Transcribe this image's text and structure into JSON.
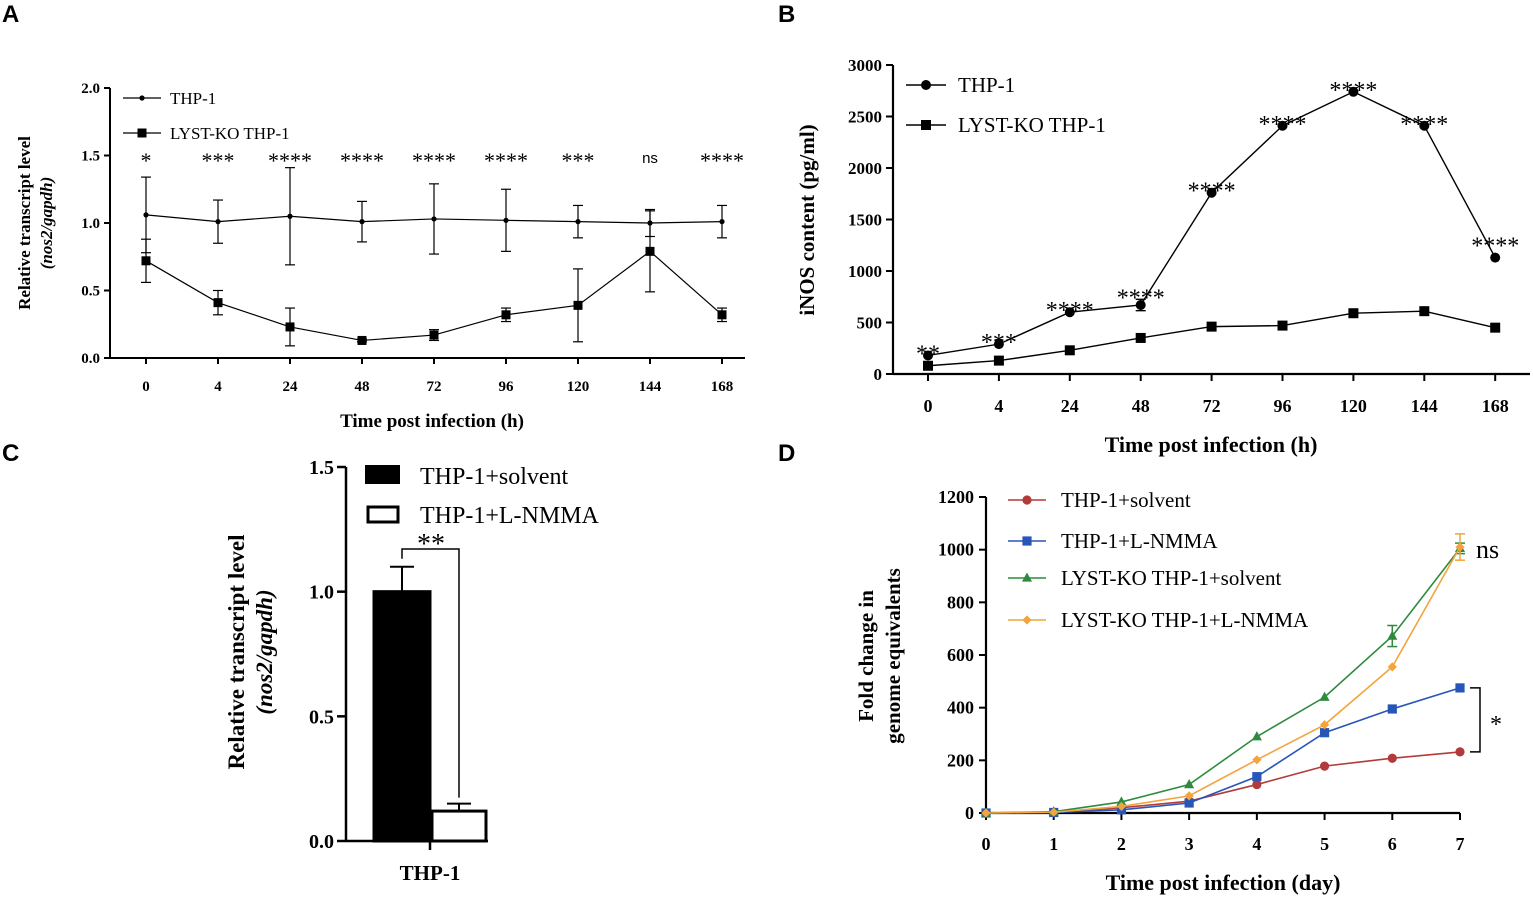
{
  "chart_data": [
    {
      "panel": "A",
      "type": "line",
      "xlabel": "Time post infection (h)",
      "ylabel_line1": "Relative transcript level",
      "ylabel_line2": "(nos2/gapdh)",
      "categories": [
        "0",
        "4",
        "24",
        "48",
        "72",
        "96",
        "120",
        "144",
        "168"
      ],
      "yticks": [
        "0.0",
        "0.5",
        "1.0",
        "1.5",
        "2.0"
      ],
      "ylim": [
        0,
        2.0
      ],
      "series": [
        {
          "name": "THP-1",
          "marker": "circle-small",
          "values": [
            1.06,
            1.01,
            1.05,
            1.01,
            1.03,
            1.02,
            1.01,
            1.0,
            1.01
          ],
          "errors": [
            0.28,
            0.16,
            0.36,
            0.15,
            0.26,
            0.23,
            0.12,
            0.1,
            0.12
          ]
        },
        {
          "name": "LYST-KO THP-1",
          "marker": "square",
          "values": [
            0.72,
            0.41,
            0.23,
            0.13,
            0.17,
            0.32,
            0.39,
            0.79,
            0.32
          ],
          "errors": [
            0.16,
            0.09,
            0.14,
            0.01,
            0.04,
            0.05,
            0.27,
            0.3,
            0.05
          ]
        }
      ],
      "significance": [
        "*",
        "***",
        "****",
        "****",
        "****",
        "****",
        "***",
        "ns",
        "****"
      ]
    },
    {
      "panel": "B",
      "type": "line",
      "xlabel": "Time post infection (h)",
      "ylabel": "iNOS content (pg/ml)",
      "categories": [
        "0",
        "4",
        "24",
        "48",
        "72",
        "96",
        "120",
        "144",
        "168"
      ],
      "yticks": [
        "0",
        "500",
        "1000",
        "1500",
        "2000",
        "2500",
        "3000"
      ],
      "ylim": [
        0,
        3000
      ],
      "series": [
        {
          "name": "THP-1",
          "marker": "circle",
          "values": [
            180,
            290,
            600,
            670,
            1760,
            2410,
            2740,
            2410,
            1130
          ],
          "errors": [
            0,
            0,
            0,
            55,
            0,
            0,
            0,
            0,
            0
          ]
        },
        {
          "name": "LYST-KO THP-1",
          "marker": "square",
          "values": [
            80,
            130,
            230,
            350,
            460,
            470,
            590,
            610,
            450
          ],
          "errors": [
            0,
            0,
            0,
            0,
            0,
            0,
            0,
            0,
            0
          ]
        }
      ],
      "significance": [
        "**",
        "***",
        "****",
        "****",
        "****",
        "****",
        "****",
        "****",
        "****"
      ]
    },
    {
      "panel": "C",
      "type": "bar",
      "xlabel": "THP-1",
      "ylabel_line1": "Relative transcript level",
      "ylabel_line2": "(nos2/gapdh)",
      "yticks": [
        "0.0",
        "0.5",
        "1.0",
        "1.5"
      ],
      "ylim": [
        0,
        1.5
      ],
      "series": [
        {
          "name": "THP-1+solvent",
          "fill": "#000000",
          "value": 1.0,
          "error": 0.1
        },
        {
          "name": "THP-1+L-NMMA",
          "fill": "#ffffff",
          "value": 0.12,
          "error": 0.03
        }
      ],
      "significance": "**"
    },
    {
      "panel": "D",
      "type": "line",
      "xlabel": "Time post infection (day)",
      "ylabel_line1": "Fold change in",
      "ylabel_line2": "genome equivalents",
      "x": [
        "0",
        "1",
        "2",
        "3",
        "4",
        "5",
        "6",
        "7"
      ],
      "yticks": [
        "0",
        "200",
        "400",
        "600",
        "800",
        "1000",
        "1200"
      ],
      "ylim": [
        0,
        1200
      ],
      "series": [
        {
          "name": "THP-1+solvent",
          "color": "#b23a3a",
          "marker": "circle",
          "values": [
            0,
            2,
            20,
            45,
            108,
            178,
            208,
            232
          ],
          "errors": [
            0,
            0,
            0,
            0,
            0,
            0,
            0,
            0
          ]
        },
        {
          "name": "THP-1+L-NMMA",
          "color": "#2855b8",
          "marker": "square",
          "values": [
            0,
            2,
            12,
            38,
            138,
            305,
            395,
            475
          ],
          "errors": [
            0,
            0,
            0,
            0,
            0,
            0,
            0,
            0
          ]
        },
        {
          "name": "LYST-KO THP-1+solvent",
          "color": "#2e8b3e",
          "marker": "triangle",
          "values": [
            0,
            5,
            42,
            108,
            290,
            440,
            672,
            1005
          ],
          "errors": [
            0,
            0,
            0,
            0,
            0,
            0,
            40,
            20
          ]
        },
        {
          "name": "LYST-KO THP-1+L-NMMA",
          "color": "#f3a43c",
          "marker": "diamond",
          "values": [
            0,
            3,
            25,
            65,
            202,
            335,
            555,
            1010
          ],
          "errors": [
            0,
            0,
            0,
            0,
            0,
            0,
            0,
            50
          ]
        }
      ],
      "sig_top": "ns",
      "sig_bracket": "*"
    }
  ]
}
